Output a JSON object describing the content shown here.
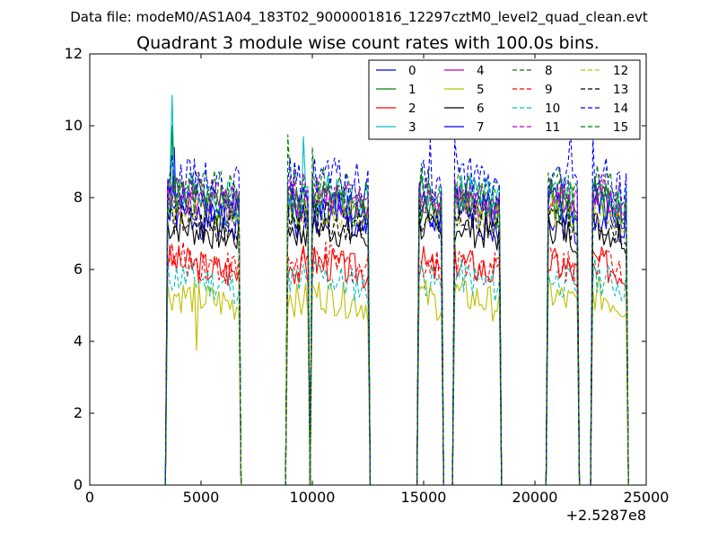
{
  "figure": {
    "suptitle": "Data file: modeM0/AS1A04_183T02_9000001816_12297cztM0_level2_quad_clean.evt",
    "title": "Quadrant 3 module wise count rates with 100.0s bins.",
    "x_offset_text": "+2.5287e8"
  },
  "chart_data": {
    "type": "line",
    "title": "Quadrant 3 module wise count rates with 100.0s bins.",
    "xlabel": "",
    "ylabel": "",
    "xlim": [
      0,
      25000
    ],
    "ylim": [
      0,
      12
    ],
    "xticks": [
      0,
      5000,
      10000,
      15000,
      20000,
      25000
    ],
    "xtick_labels": [
      "0",
      "5000",
      "10000",
      "15000",
      "20000",
      "25000"
    ],
    "yticks": [
      0,
      2,
      4,
      6,
      8,
      10,
      12
    ],
    "ytick_labels": [
      "0",
      "2",
      "4",
      "6",
      "8",
      "10",
      "12"
    ],
    "x_offset": 252870000,
    "grid": false,
    "legend_position": "top-right",
    "legend_columns": 4,
    "x_start": 3400,
    "x_step": 100,
    "segments": [
      {
        "start": 3500,
        "end": 6700
      },
      {
        "start": 8900,
        "end": 9500
      },
      {
        "start": 9600,
        "end": 9800
      },
      {
        "start": 10000,
        "end": 12500
      },
      {
        "start": 14800,
        "end": 15800
      },
      {
        "start": 16400,
        "end": 18400
      },
      {
        "start": 20600,
        "end": 21900
      },
      {
        "start": 22600,
        "end": 24100
      }
    ],
    "series": [
      {
        "name": "0",
        "color": "#0000ff",
        "style": "solid",
        "level": 7.2,
        "amp": 0.55,
        "seed": 1
      },
      {
        "name": "1",
        "color": "#008000",
        "style": "solid",
        "level": 7.6,
        "amp": 0.55,
        "seed": 2
      },
      {
        "name": "2",
        "color": "#ff0000",
        "style": "solid",
        "level": 5.9,
        "amp": 0.5,
        "seed": 3
      },
      {
        "name": "3",
        "color": "#00bfbf",
        "style": "solid",
        "level": 7.9,
        "amp": 0.55,
        "seed": 4
      },
      {
        "name": "4",
        "color": "#bf00bf",
        "style": "solid",
        "level": 7.7,
        "amp": 0.5,
        "seed": 5
      },
      {
        "name": "5",
        "color": "#bfbf00",
        "style": "solid",
        "level": 5.0,
        "amp": 0.5,
        "seed": 6
      },
      {
        "name": "6",
        "color": "#000000",
        "style": "solid",
        "level": 6.9,
        "amp": 0.5,
        "seed": 7
      },
      {
        "name": "7",
        "color": "#0000ff",
        "style": "solid",
        "level": 7.5,
        "amp": 0.55,
        "seed": 8
      },
      {
        "name": "8",
        "color": "#008000",
        "style": "dashed",
        "level": 8.1,
        "amp": 0.55,
        "seed": 9
      },
      {
        "name": "9",
        "color": "#ff0000",
        "style": "dashed",
        "level": 6.0,
        "amp": 0.5,
        "seed": 10
      },
      {
        "name": "10",
        "color": "#00bfbf",
        "style": "dashed",
        "level": 5.5,
        "amp": 0.5,
        "seed": 11
      },
      {
        "name": "11",
        "color": "#bf00bf",
        "style": "dashed",
        "level": 7.9,
        "amp": 0.55,
        "seed": 12
      },
      {
        "name": "12",
        "color": "#bfbf00",
        "style": "dashed",
        "level": 7.4,
        "amp": 0.5,
        "seed": 13
      },
      {
        "name": "13",
        "color": "#000000",
        "style": "dashed",
        "level": 7.1,
        "amp": 0.5,
        "seed": 14
      },
      {
        "name": "14",
        "color": "#0000ff",
        "style": "dashed",
        "level": 8.3,
        "amp": 0.6,
        "seed": 15
      },
      {
        "name": "15",
        "color": "#008000",
        "style": "dashed",
        "level": 7.8,
        "amp": 0.55,
        "seed": 16
      }
    ],
    "peaks": [
      {
        "x": 3700,
        "series": "3",
        "y": 10.85
      },
      {
        "x": 3700,
        "series": "1",
        "y": 10.0
      },
      {
        "x": 3800,
        "series": "0",
        "y": 9.4
      },
      {
        "x": 3900,
        "series": "3",
        "y": 8.5
      },
      {
        "x": 8900,
        "series": "8",
        "y": 9.75
      },
      {
        "x": 9600,
        "series": "3",
        "y": 9.7
      },
      {
        "x": 10000,
        "series": "8",
        "y": 9.4
      },
      {
        "x": 15300,
        "series": "14",
        "y": 9.6
      },
      {
        "x": 16400,
        "series": "14",
        "y": 9.6
      },
      {
        "x": 21600,
        "series": "14",
        "y": 9.85
      },
      {
        "x": 22600,
        "series": "14",
        "y": 9.8
      },
      {
        "x": 4800,
        "series": "5",
        "y": 3.75
      }
    ]
  }
}
